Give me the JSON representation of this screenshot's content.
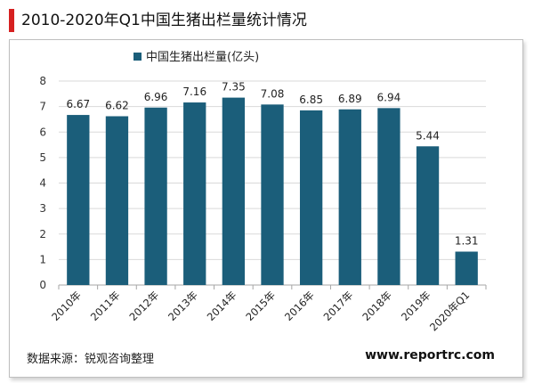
{
  "header": {
    "title": "2010-2020年Q1中国生猪出栏量统计情况",
    "accent_color": "#d62020"
  },
  "footer": {
    "source": "数据来源：锐观咨询整理",
    "website": "www.reportrc.com"
  },
  "chart_data": {
    "type": "bar",
    "categories": [
      "2010年",
      "2011年",
      "2012年",
      "2013年",
      "2014年",
      "2015年",
      "2016年",
      "2017年",
      "2018年",
      "2019年",
      "2020年Q1"
    ],
    "series": [
      {
        "name": "中国生猪出栏量(亿头)",
        "values": [
          6.67,
          6.62,
          6.96,
          7.16,
          7.35,
          7.08,
          6.85,
          6.89,
          6.94,
          5.44,
          1.31
        ],
        "color": "#1b5e7a"
      }
    ],
    "data_labels": [
      "6.67",
      "6.62",
      "6.96",
      "7.16",
      "7.35",
      "7.08",
      "6.85",
      "6.89",
      "6.94",
      "5.44",
      "1.31"
    ],
    "yticks": [
      "0",
      "1",
      "2",
      "3",
      "4",
      "5",
      "6",
      "7",
      "8"
    ],
    "ylim": [
      0,
      8
    ],
    "grid": true,
    "legend_position": "top-left"
  }
}
